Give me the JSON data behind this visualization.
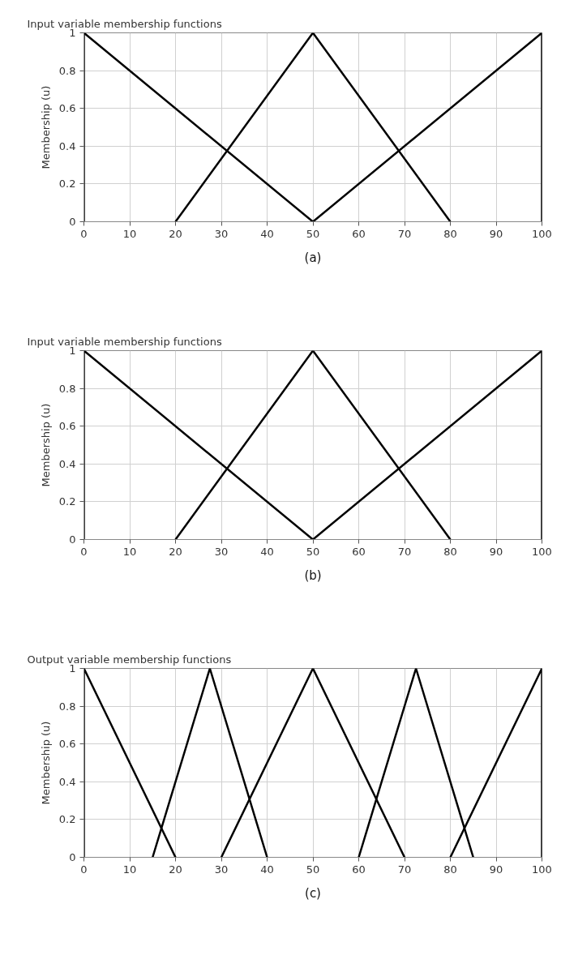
{
  "chart_data": [
    {
      "type": "line",
      "title": "Input variable membership functions",
      "ylabel": "Membership (u)",
      "annotations": [
        "(a)"
      ],
      "xlim": [
        0,
        100
      ],
      "ylim": [
        0,
        1
      ],
      "xticks": [
        0,
        10,
        20,
        30,
        40,
        50,
        60,
        70,
        80,
        90,
        100
      ],
      "yticks": [
        0,
        0.2,
        0.4,
        0.6,
        0.8,
        1
      ],
      "grid": true,
      "series": [
        {
          "color": "#000000",
          "x": [
            0,
            0,
            50
          ],
          "values": [
            0,
            1,
            0
          ]
        },
        {
          "color": "#000000",
          "x": [
            20,
            50,
            80
          ],
          "values": [
            0,
            1,
            0
          ]
        },
        {
          "color": "#000000",
          "x": [
            50,
            100,
            100
          ],
          "values": [
            0,
            1,
            0
          ]
        }
      ]
    },
    {
      "type": "line",
      "title": "Input variable membership functions",
      "ylabel": "Membership (u)",
      "annotations": [
        "(b)"
      ],
      "xlim": [
        0,
        100
      ],
      "ylim": [
        0,
        1
      ],
      "xticks": [
        0,
        10,
        20,
        30,
        40,
        50,
        60,
        70,
        80,
        90,
        100
      ],
      "yticks": [
        0,
        0.2,
        0.4,
        0.6,
        0.8,
        1
      ],
      "grid": true,
      "series": [
        {
          "color": "#000000",
          "x": [
            0,
            0,
            50
          ],
          "values": [
            0,
            1,
            0
          ]
        },
        {
          "color": "#000000",
          "x": [
            20,
            50,
            80
          ],
          "values": [
            0,
            1,
            0
          ]
        },
        {
          "color": "#000000",
          "x": [
            50,
            100,
            100
          ],
          "values": [
            0,
            1,
            0
          ]
        }
      ]
    },
    {
      "type": "line",
      "title": "Output variable membership functions",
      "ylabel": "Membership (u)",
      "annotations": [
        "(c)"
      ],
      "xlim": [
        0,
        100
      ],
      "ylim": [
        0,
        1
      ],
      "xticks": [
        0,
        10,
        20,
        30,
        40,
        50,
        60,
        70,
        80,
        90,
        100
      ],
      "yticks": [
        0,
        0.2,
        0.4,
        0.6,
        0.8,
        1
      ],
      "grid": true,
      "series": [
        {
          "color": "#000000",
          "x": [
            0,
            0,
            20
          ],
          "values": [
            0,
            1,
            0
          ]
        },
        {
          "color": "#000000",
          "x": [
            15,
            27.5,
            40
          ],
          "values": [
            0,
            1,
            0
          ]
        },
        {
          "color": "#000000",
          "x": [
            30,
            50,
            70
          ],
          "values": [
            0,
            1,
            0
          ]
        },
        {
          "color": "#000000",
          "x": [
            60,
            72.5,
            85
          ],
          "values": [
            0,
            1,
            0
          ]
        },
        {
          "color": "#000000",
          "x": [
            80,
            100,
            100
          ],
          "values": [
            0,
            1,
            0
          ]
        }
      ]
    }
  ]
}
